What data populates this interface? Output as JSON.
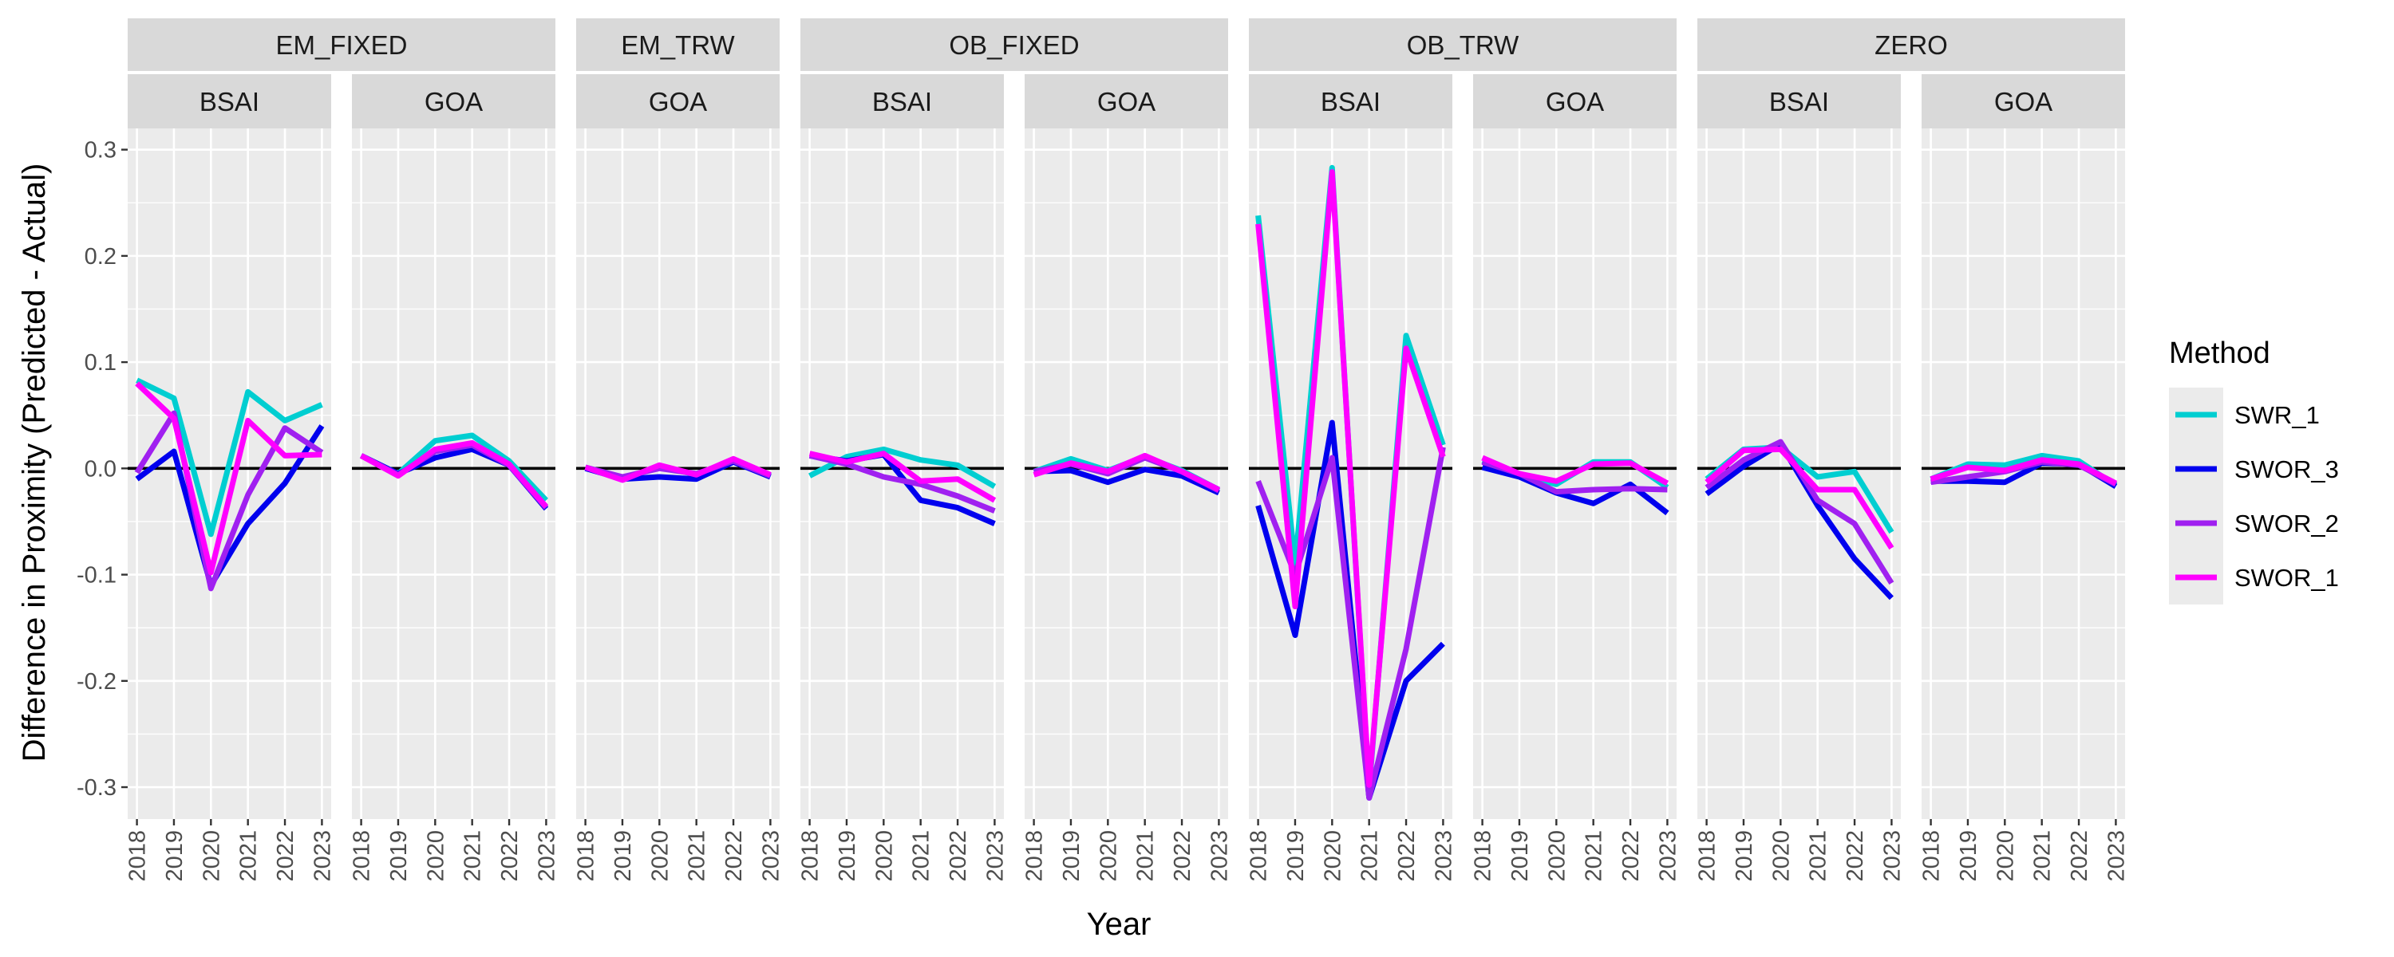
{
  "chart_data": {
    "type": "line",
    "xlabel": "Year",
    "ylabel": "Difference in Proximity (Predicted - Actual)",
    "x": [
      "2018",
      "2019",
      "2020",
      "2021",
      "2022",
      "2023"
    ],
    "ylim": [
      -0.33,
      0.32
    ],
    "yticks": [
      0.3,
      0.2,
      0.1,
      0.0,
      -0.1,
      -0.2,
      -0.3
    ],
    "ytick_labels": [
      "0.3",
      "0.2",
      "0.1",
      "0.0",
      "-0.1",
      "-0.2",
      "-0.3"
    ],
    "reference_line_y": 0,
    "grid": true,
    "legend": {
      "title": "Method",
      "position": "right",
      "entries": [
        {
          "name": "SWR_1",
          "color": "#00CED1"
        },
        {
          "name": "SWOR_3",
          "color": "#0000EE"
        },
        {
          "name": "SWOR_2",
          "color": "#A020F0"
        },
        {
          "name": "SWOR_1",
          "color": "#FF00FF"
        }
      ]
    },
    "groups": [
      {
        "label": "EM_FIXED",
        "panels": [
          {
            "label": "BSAI",
            "series": {
              "SWR_1": [
                0.083,
                0.066,
                -0.062,
                0.072,
                0.045,
                0.06
              ],
              "SWOR_3": [
                -0.01,
                0.016,
                -0.11,
                -0.052,
                -0.014,
                0.04
              ],
              "SWOR_2": [
                -0.004,
                0.052,
                -0.113,
                -0.025,
                0.038,
                0.015
              ],
              "SWOR_1": [
                0.08,
                0.047,
                -0.098,
                0.045,
                0.012,
                0.013
              ]
            }
          },
          {
            "label": "GOA",
            "series": {
              "SWR_1": [
                0.012,
                -0.005,
                0.026,
                0.031,
                0.007,
                -0.03
              ],
              "SWOR_3": [
                0.012,
                -0.005,
                0.01,
                0.018,
                0.003,
                -0.038
              ],
              "SWOR_2": [
                0.012,
                -0.006,
                0.016,
                0.022,
                0.003,
                -0.037
              ],
              "SWOR_1": [
                0.012,
                -0.007,
                0.018,
                0.024,
                0.004,
                -0.036
              ]
            }
          }
        ]
      },
      {
        "label": "EM_TRW",
        "panels": [
          {
            "label": "GOA",
            "series": {
              "SWR_1": [
                0.001,
                -0.01,
                0.002,
                -0.006,
                0.008,
                -0.007
              ],
              "SWOR_3": [
                0.0,
                -0.01,
                -0.008,
                -0.01,
                0.006,
                -0.008
              ],
              "SWOR_2": [
                0.001,
                -0.008,
                0.0,
                -0.005,
                0.007,
                -0.007
              ],
              "SWOR_1": [
                0.001,
                -0.011,
                0.003,
                -0.006,
                0.009,
                -0.006
              ]
            }
          }
        ]
      },
      {
        "label": "OB_FIXED",
        "panels": [
          {
            "label": "BSAI",
            "series": {
              "SWR_1": [
                -0.007,
                0.011,
                0.018,
                0.008,
                0.003,
                -0.017
              ],
              "SWOR_3": [
                0.012,
                0.007,
                0.013,
                -0.03,
                -0.037,
                -0.052
              ],
              "SWOR_2": [
                0.012,
                0.004,
                -0.008,
                -0.015,
                -0.026,
                -0.04
              ],
              "SWOR_1": [
                0.014,
                0.006,
                0.014,
                -0.012,
                -0.01,
                -0.03
              ]
            }
          },
          {
            "label": "GOA",
            "series": {
              "SWR_1": [
                -0.003,
                0.009,
                -0.002,
                0.011,
                -0.002,
                -0.02
              ],
              "SWOR_3": [
                -0.003,
                -0.002,
                -0.013,
                -0.001,
                -0.007,
                -0.023
              ],
              "SWOR_2": [
                -0.003,
                0.004,
                -0.005,
                0.01,
                -0.003,
                -0.021
              ],
              "SWOR_1": [
                -0.006,
                0.005,
                -0.003,
                0.012,
                -0.003,
                -0.02
              ]
            }
          }
        ]
      },
      {
        "label": "OB_TRW",
        "panels": [
          {
            "label": "BSAI",
            "series": {
              "SWR_1": [
                0.238,
                -0.09,
                0.283,
                -0.302,
                0.125,
                0.022
              ],
              "SWOR_3": [
                -0.035,
                -0.157,
                0.043,
                -0.31,
                -0.2,
                -0.165
              ],
              "SWOR_2": [
                -0.012,
                -0.1,
                0.01,
                -0.31,
                -0.17,
                0.02
              ],
              "SWOR_1": [
                0.23,
                -0.13,
                0.279,
                -0.298,
                0.113,
                0.011
              ]
            }
          },
          {
            "label": "GOA",
            "series": {
              "SWR_1": [
                0.007,
                -0.006,
                -0.015,
                0.006,
                0.006,
                -0.018
              ],
              "SWOR_3": [
                0.001,
                -0.008,
                -0.023,
                -0.033,
                -0.015,
                -0.042
              ],
              "SWOR_2": [
                0.006,
                -0.005,
                -0.022,
                -0.02,
                -0.019,
                -0.02
              ],
              "SWOR_1": [
                0.01,
                -0.005,
                -0.012,
                0.004,
                0.005,
                -0.014
              ]
            }
          }
        ]
      },
      {
        "label": "ZERO",
        "panels": [
          {
            "label": "BSAI",
            "series": {
              "SWR_1": [
                -0.01,
                0.018,
                0.02,
                -0.008,
                -0.003,
                -0.06
              ],
              "SWOR_3": [
                -0.024,
                0.002,
                0.023,
                -0.035,
                -0.085,
                -0.122
              ],
              "SWOR_2": [
                -0.018,
                0.008,
                0.025,
                -0.03,
                -0.052,
                -0.108
              ],
              "SWOR_1": [
                -0.013,
                0.017,
                0.018,
                -0.02,
                -0.02,
                -0.075
              ]
            }
          },
          {
            "label": "GOA",
            "series": {
              "SWR_1": [
                -0.01,
                0.004,
                0.003,
                0.012,
                0.007,
                -0.016
              ],
              "SWOR_3": [
                -0.012,
                -0.012,
                -0.013,
                0.005,
                0.004,
                -0.017
              ],
              "SWOR_2": [
                -0.013,
                -0.008,
                -0.003,
                0.006,
                0.003,
                -0.015
              ],
              "SWOR_1": [
                -0.01,
                0.001,
                -0.002,
                0.008,
                0.004,
                -0.014
              ]
            }
          }
        ]
      }
    ]
  }
}
